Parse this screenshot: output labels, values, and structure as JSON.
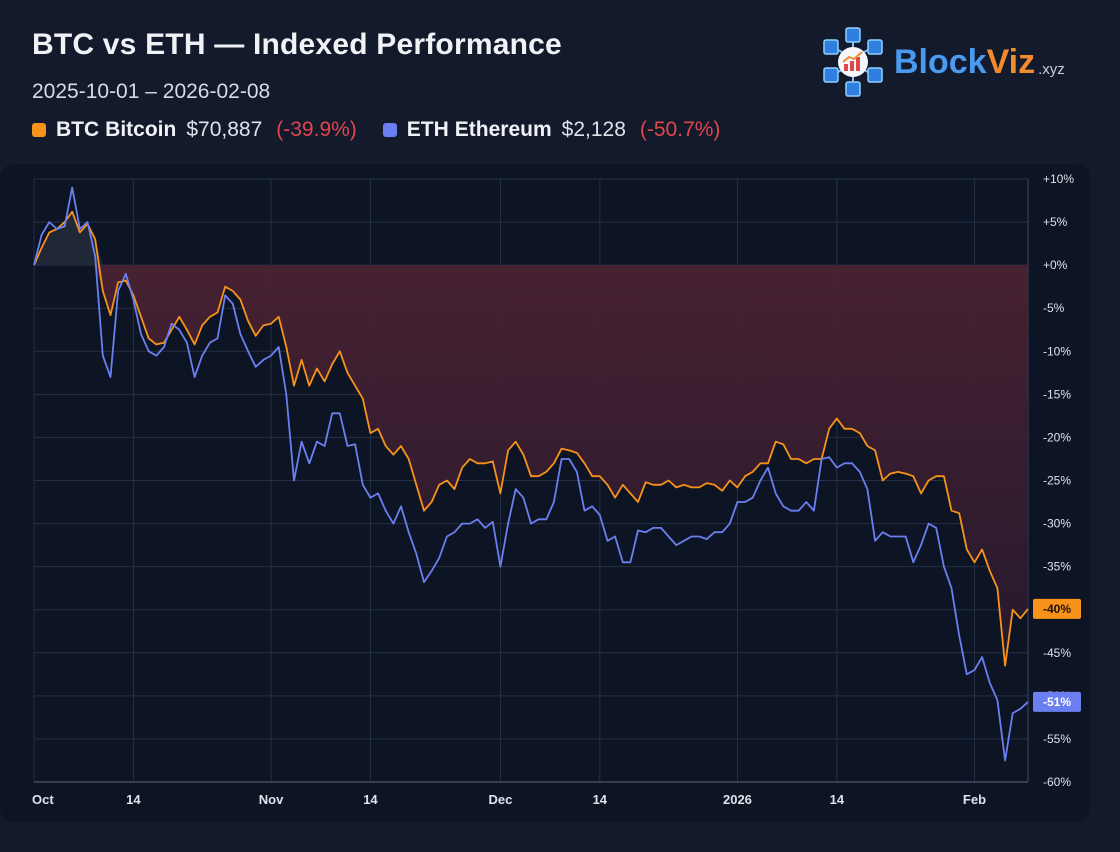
{
  "header": {
    "title": "BTC vs ETH — Indexed Performance",
    "date_range": "2025-10-01 – 2026-02-08"
  },
  "legend": [
    {
      "symbol": "BTC",
      "name": "Bitcoin",
      "price": "$70,887",
      "change": "(-39.9%)",
      "color": "#f7931a"
    },
    {
      "symbol": "ETH",
      "name": "Ethereum",
      "price": "$2,128",
      "change": "(-50.7%)",
      "color": "#6b7ff0"
    }
  ],
  "logo": {
    "brand_a": "Block",
    "brand_b": "Viz",
    "tld": ".xyz",
    "icon": "blockchain-chart-icon"
  },
  "colors": {
    "btc": "#f7931a",
    "eth": "#6b7ff0",
    "negative": "#e0474c",
    "drawdown_fill": "#4a2030"
  },
  "chart_data": {
    "type": "line",
    "x_start": "2025-10-01",
    "x_end": "2026-02-08",
    "x_tick_labels": [
      {
        "label": "Oct",
        "date": "2025-10-01"
      },
      {
        "label": "14",
        "date": "2025-10-14"
      },
      {
        "label": "Nov",
        "date": "2025-11-01"
      },
      {
        "label": "14",
        "date": "2025-11-14"
      },
      {
        "label": "Dec",
        "date": "2025-12-01"
      },
      {
        "label": "14",
        "date": "2025-12-14"
      },
      {
        "label": "2026",
        "date": "2026-01-01"
      },
      {
        "label": "14",
        "date": "2026-01-14"
      },
      {
        "label": "Feb",
        "date": "2026-02-01"
      }
    ],
    "y_ticks": [
      10,
      5,
      0,
      -5,
      -10,
      -15,
      -20,
      -25,
      -30,
      -35,
      -40,
      -45,
      -50,
      -55,
      -60
    ],
    "y_tick_labels": [
      "+10%",
      "+5%",
      "+0%",
      "-5%",
      "-10%",
      "-15%",
      "-20%",
      "-25%",
      "-30%",
      "-35%",
      "-40%",
      "-45%",
      "-50%",
      "-55%",
      "-60%"
    ],
    "ylim": [
      -60,
      10
    ],
    "y_unit": "%",
    "grid": true,
    "series": [
      {
        "name": "BTC",
        "color": "#f7931a",
        "end_label": "-40%",
        "points": [
          [
            "2025-10-01",
            0
          ],
          [
            "2025-10-02",
            2
          ],
          [
            "2025-10-03",
            3.8
          ],
          [
            "2025-10-04",
            4.2
          ],
          [
            "2025-10-05",
            5
          ],
          [
            "2025-10-06",
            6.2
          ],
          [
            "2025-10-07",
            3.8
          ],
          [
            "2025-10-08",
            4.8
          ],
          [
            "2025-10-09",
            3
          ],
          [
            "2025-10-10",
            -3
          ],
          [
            "2025-10-11",
            -5.8
          ],
          [
            "2025-10-12",
            -2
          ],
          [
            "2025-10-13",
            -1.8
          ],
          [
            "2025-10-14",
            -3.5
          ],
          [
            "2025-10-15",
            -6
          ],
          [
            "2025-10-16",
            -8.5
          ],
          [
            "2025-10-17",
            -9.2
          ],
          [
            "2025-10-18",
            -9
          ],
          [
            "2025-10-19",
            -7.5
          ],
          [
            "2025-10-20",
            -6
          ],
          [
            "2025-10-21",
            -7.5
          ],
          [
            "2025-10-22",
            -9.2
          ],
          [
            "2025-10-23",
            -7
          ],
          [
            "2025-10-24",
            -6
          ],
          [
            "2025-10-25",
            -5.5
          ],
          [
            "2025-10-26",
            -2.5
          ],
          [
            "2025-10-27",
            -3
          ],
          [
            "2025-10-28",
            -4
          ],
          [
            "2025-10-29",
            -6.5
          ],
          [
            "2025-10-30",
            -8.2
          ],
          [
            "2025-10-31",
            -7
          ],
          [
            "2025-11-01",
            -6.8
          ],
          [
            "2025-11-02",
            -6
          ],
          [
            "2025-11-03",
            -9.5
          ],
          [
            "2025-11-04",
            -14
          ],
          [
            "2025-11-05",
            -11
          ],
          [
            "2025-11-06",
            -14
          ],
          [
            "2025-11-07",
            -12
          ],
          [
            "2025-11-08",
            -13.5
          ],
          [
            "2025-11-09",
            -11.5
          ],
          [
            "2025-11-10",
            -10
          ],
          [
            "2025-11-11",
            -12.5
          ],
          [
            "2025-11-12",
            -14
          ],
          [
            "2025-11-13",
            -15.5
          ],
          [
            "2025-11-14",
            -19.5
          ],
          [
            "2025-11-15",
            -19
          ],
          [
            "2025-11-16",
            -21
          ],
          [
            "2025-11-17",
            -22
          ],
          [
            "2025-11-18",
            -21
          ],
          [
            "2025-11-19",
            -22.5
          ],
          [
            "2025-11-20",
            -25.5
          ],
          [
            "2025-11-21",
            -28.5
          ],
          [
            "2025-11-22",
            -27.5
          ],
          [
            "2025-11-23",
            -25.5
          ],
          [
            "2025-11-24",
            -25
          ],
          [
            "2025-11-25",
            -26
          ],
          [
            "2025-11-26",
            -23.5
          ],
          [
            "2025-11-27",
            -22.5
          ],
          [
            "2025-11-28",
            -23
          ],
          [
            "2025-11-29",
            -23
          ],
          [
            "2025-11-30",
            -22.8
          ],
          [
            "2025-12-01",
            -26.5
          ],
          [
            "2025-12-02",
            -21.5
          ],
          [
            "2025-12-03",
            -20.5
          ],
          [
            "2025-12-04",
            -22
          ],
          [
            "2025-12-05",
            -24.5
          ],
          [
            "2025-12-06",
            -24.5
          ],
          [
            "2025-12-07",
            -24
          ],
          [
            "2025-12-08",
            -23
          ],
          [
            "2025-12-09",
            -21.3
          ],
          [
            "2025-12-10",
            -21.5
          ],
          [
            "2025-12-11",
            -21.8
          ],
          [
            "2025-12-12",
            -23
          ],
          [
            "2025-12-13",
            -24.5
          ],
          [
            "2025-12-14",
            -24.5
          ],
          [
            "2025-12-15",
            -25.5
          ],
          [
            "2025-12-16",
            -27
          ],
          [
            "2025-12-17",
            -25.5
          ],
          [
            "2025-12-18",
            -26.5
          ],
          [
            "2025-12-19",
            -27.5
          ],
          [
            "2025-12-20",
            -25.2
          ],
          [
            "2025-12-21",
            -25.5
          ],
          [
            "2025-12-22",
            -25.5
          ],
          [
            "2025-12-23",
            -25
          ],
          [
            "2025-12-24",
            -25.8
          ],
          [
            "2025-12-25",
            -25.5
          ],
          [
            "2025-12-26",
            -25.8
          ],
          [
            "2025-12-27",
            -25.8
          ],
          [
            "2025-12-28",
            -25.3
          ],
          [
            "2025-12-29",
            -25.5
          ],
          [
            "2025-12-30",
            -26.2
          ],
          [
            "2025-12-31",
            -25
          ],
          [
            "2026-01-01",
            -25.8
          ],
          [
            "2026-01-02",
            -24.5
          ],
          [
            "2026-01-03",
            -24
          ],
          [
            "2026-01-04",
            -23
          ],
          [
            "2026-01-05",
            -23
          ],
          [
            "2026-01-06",
            -20.5
          ],
          [
            "2026-01-07",
            -20.8
          ],
          [
            "2026-01-08",
            -22.5
          ],
          [
            "2026-01-09",
            -22.5
          ],
          [
            "2026-01-10",
            -23
          ],
          [
            "2026-01-11",
            -22.5
          ],
          [
            "2026-01-12",
            -22.5
          ],
          [
            "2026-01-13",
            -19
          ],
          [
            "2026-01-14",
            -17.8
          ],
          [
            "2026-01-15",
            -19
          ],
          [
            "2026-01-16",
            -19
          ],
          [
            "2026-01-17",
            -19.5
          ],
          [
            "2026-01-18",
            -21
          ],
          [
            "2026-01-19",
            -21.5
          ],
          [
            "2026-01-20",
            -25
          ],
          [
            "2026-01-21",
            -24.2
          ],
          [
            "2026-01-22",
            -24
          ],
          [
            "2026-01-23",
            -24.2
          ],
          [
            "2026-01-24",
            -24.5
          ],
          [
            "2026-01-25",
            -26.5
          ],
          [
            "2026-01-26",
            -25
          ],
          [
            "2026-01-27",
            -24.5
          ],
          [
            "2026-01-28",
            -24.5
          ],
          [
            "2026-01-29",
            -28.5
          ],
          [
            "2026-01-30",
            -28.8
          ],
          [
            "2026-01-31",
            -33
          ],
          [
            "2026-02-01",
            -34.5
          ],
          [
            "2026-02-02",
            -33
          ],
          [
            "2026-02-03",
            -35.5
          ],
          [
            "2026-02-04",
            -37.5
          ],
          [
            "2026-02-05",
            -46.5
          ],
          [
            "2026-02-06",
            -40
          ],
          [
            "2026-02-07",
            -41
          ],
          [
            "2026-02-08",
            -39.9
          ]
        ]
      },
      {
        "name": "ETH",
        "color": "#6b7ff0",
        "end_label": "-51%",
        "points": [
          [
            "2025-10-01",
            0
          ],
          [
            "2025-10-02",
            3.5
          ],
          [
            "2025-10-03",
            5
          ],
          [
            "2025-10-04",
            4.2
          ],
          [
            "2025-10-05",
            4.5
          ],
          [
            "2025-10-06",
            9
          ],
          [
            "2025-10-07",
            4.2
          ],
          [
            "2025-10-08",
            5
          ],
          [
            "2025-10-09",
            1
          ],
          [
            "2025-10-10",
            -10.5
          ],
          [
            "2025-10-11",
            -13
          ],
          [
            "2025-10-12",
            -3
          ],
          [
            "2025-10-13",
            -1
          ],
          [
            "2025-10-14",
            -4
          ],
          [
            "2025-10-15",
            -8
          ],
          [
            "2025-10-16",
            -10
          ],
          [
            "2025-10-17",
            -10.5
          ],
          [
            "2025-10-18",
            -9.5
          ],
          [
            "2025-10-19",
            -6.8
          ],
          [
            "2025-10-20",
            -7.5
          ],
          [
            "2025-10-21",
            -9
          ],
          [
            "2025-10-22",
            -13
          ],
          [
            "2025-10-23",
            -10.5
          ],
          [
            "2025-10-24",
            -9
          ],
          [
            "2025-10-25",
            -8.5
          ],
          [
            "2025-10-26",
            -3.5
          ],
          [
            "2025-10-27",
            -4.5
          ],
          [
            "2025-10-28",
            -8
          ],
          [
            "2025-10-29",
            -10
          ],
          [
            "2025-10-30",
            -11.8
          ],
          [
            "2025-10-31",
            -11
          ],
          [
            "2025-11-01",
            -10.5
          ],
          [
            "2025-11-02",
            -9.5
          ],
          [
            "2025-11-03",
            -15
          ],
          [
            "2025-11-04",
            -25
          ],
          [
            "2025-11-05",
            -20.5
          ],
          [
            "2025-11-06",
            -23
          ],
          [
            "2025-11-07",
            -20.5
          ],
          [
            "2025-11-08",
            -21
          ],
          [
            "2025-11-09",
            -17.2
          ],
          [
            "2025-11-10",
            -17.2
          ],
          [
            "2025-11-11",
            -21
          ],
          [
            "2025-11-12",
            -20.8
          ],
          [
            "2025-11-13",
            -25.5
          ],
          [
            "2025-11-14",
            -27
          ],
          [
            "2025-11-15",
            -26.5
          ],
          [
            "2025-11-16",
            -28.5
          ],
          [
            "2025-11-17",
            -30
          ],
          [
            "2025-11-18",
            -28
          ],
          [
            "2025-11-19",
            -31
          ],
          [
            "2025-11-20",
            -33.5
          ],
          [
            "2025-11-21",
            -36.8
          ],
          [
            "2025-11-22",
            -35.5
          ],
          [
            "2025-11-23",
            -34
          ],
          [
            "2025-11-24",
            -31.5
          ],
          [
            "2025-11-25",
            -31
          ],
          [
            "2025-11-26",
            -30
          ],
          [
            "2025-11-27",
            -30
          ],
          [
            "2025-11-28",
            -29.5
          ],
          [
            "2025-11-29",
            -30.5
          ],
          [
            "2025-11-30",
            -29.8
          ],
          [
            "2025-12-01",
            -35
          ],
          [
            "2025-12-02",
            -30
          ],
          [
            "2025-12-03",
            -26
          ],
          [
            "2025-12-04",
            -27
          ],
          [
            "2025-12-05",
            -30
          ],
          [
            "2025-12-06",
            -29.5
          ],
          [
            "2025-12-07",
            -29.5
          ],
          [
            "2025-12-08",
            -27.5
          ],
          [
            "2025-12-09",
            -22.5
          ],
          [
            "2025-12-10",
            -22.5
          ],
          [
            "2025-12-11",
            -24
          ],
          [
            "2025-12-12",
            -28.5
          ],
          [
            "2025-12-13",
            -28
          ],
          [
            "2025-12-14",
            -29
          ],
          [
            "2025-12-15",
            -32
          ],
          [
            "2025-12-16",
            -31.5
          ],
          [
            "2025-12-17",
            -34.5
          ],
          [
            "2025-12-18",
            -34.5
          ],
          [
            "2025-12-19",
            -30.8
          ],
          [
            "2025-12-20",
            -31
          ],
          [
            "2025-12-21",
            -30.5
          ],
          [
            "2025-12-22",
            -30.5
          ],
          [
            "2025-12-23",
            -31.5
          ],
          [
            "2025-12-24",
            -32.5
          ],
          [
            "2025-12-25",
            -32
          ],
          [
            "2025-12-26",
            -31.5
          ],
          [
            "2025-12-27",
            -31.5
          ],
          [
            "2025-12-28",
            -31.8
          ],
          [
            "2025-12-29",
            -31
          ],
          [
            "2025-12-30",
            -31
          ],
          [
            "2025-12-31",
            -30
          ],
          [
            "2026-01-01",
            -27.5
          ],
          [
            "2026-01-02",
            -27.5
          ],
          [
            "2026-01-03",
            -27
          ],
          [
            "2026-01-04",
            -25
          ],
          [
            "2026-01-05",
            -23.5
          ],
          [
            "2026-01-06",
            -26.5
          ],
          [
            "2026-01-07",
            -28
          ],
          [
            "2026-01-08",
            -28.5
          ],
          [
            "2026-01-09",
            -28.5
          ],
          [
            "2026-01-10",
            -27.5
          ],
          [
            "2026-01-11",
            -28.5
          ],
          [
            "2026-01-12",
            -22.5
          ],
          [
            "2026-01-13",
            -22.3
          ],
          [
            "2026-01-14",
            -23.5
          ],
          [
            "2026-01-15",
            -23
          ],
          [
            "2026-01-16",
            -23
          ],
          [
            "2026-01-17",
            -24
          ],
          [
            "2026-01-18",
            -26
          ],
          [
            "2026-01-19",
            -32
          ],
          [
            "2026-01-20",
            -31
          ],
          [
            "2026-01-21",
            -31.5
          ],
          [
            "2026-01-22",
            -31.5
          ],
          [
            "2026-01-23",
            -31.5
          ],
          [
            "2026-01-24",
            -34.5
          ],
          [
            "2026-01-25",
            -32.5
          ],
          [
            "2026-01-26",
            -30
          ],
          [
            "2026-01-27",
            -30.5
          ],
          [
            "2026-01-28",
            -35
          ],
          [
            "2026-01-29",
            -37.5
          ],
          [
            "2026-01-30",
            -43
          ],
          [
            "2026-01-31",
            -47.5
          ],
          [
            "2026-02-01",
            -47
          ],
          [
            "2026-02-02",
            -45.5
          ],
          [
            "2026-02-03",
            -48.5
          ],
          [
            "2026-02-04",
            -50.5
          ],
          [
            "2026-02-05",
            -57.5
          ],
          [
            "2026-02-06",
            -52
          ],
          [
            "2026-02-07",
            -51.5
          ],
          [
            "2026-02-08",
            -50.7
          ]
        ]
      }
    ]
  }
}
